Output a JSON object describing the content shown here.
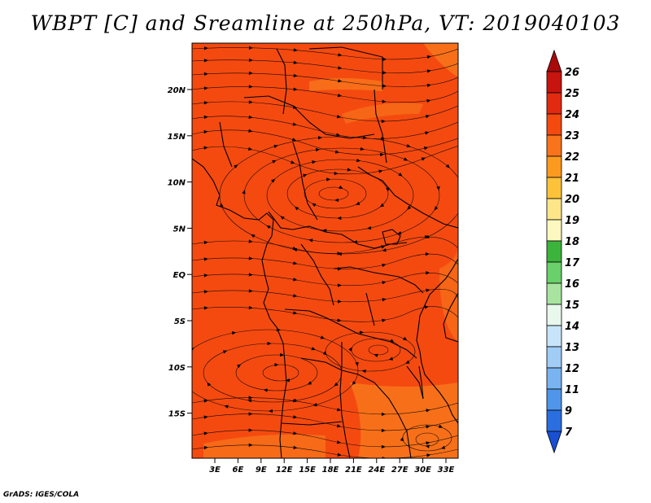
{
  "title": "WBPT [C] and Sreamline at 250hPa, VT: 2019040103",
  "credit": "GrADS: IGES/COLA",
  "map": {
    "lat_ticks": [
      "20N",
      "15N",
      "10N",
      "5N",
      "EQ",
      "5S",
      "10S",
      "15S"
    ],
    "lon_ticks": [
      "3E",
      "6E",
      "9E",
      "12E",
      "15E",
      "18E",
      "21E",
      "24E",
      "27E",
      "30E",
      "33E"
    ],
    "field_color": "#f44a10",
    "warm_patch_color": "#f98a20"
  },
  "colorbar": {
    "labels": [
      "26",
      "25",
      "24",
      "23",
      "22",
      "21",
      "20",
      "19",
      "18",
      "17",
      "16",
      "15",
      "14",
      "13",
      "12",
      "11",
      "9",
      "7"
    ],
    "colors": [
      "#aa0a0a",
      "#c8140e",
      "#e12a10",
      "#f44a10",
      "#f9731a",
      "#fb9a1e",
      "#fcc23a",
      "#fde58a",
      "#fdf8c0",
      "#3cb43c",
      "#6ad06a",
      "#a8e4a0",
      "#e8f8ec",
      "#c8e4fa",
      "#a0ccf6",
      "#7ab4f0",
      "#4f96ea",
      "#2a6ee0",
      "#1850d4"
    ]
  }
}
